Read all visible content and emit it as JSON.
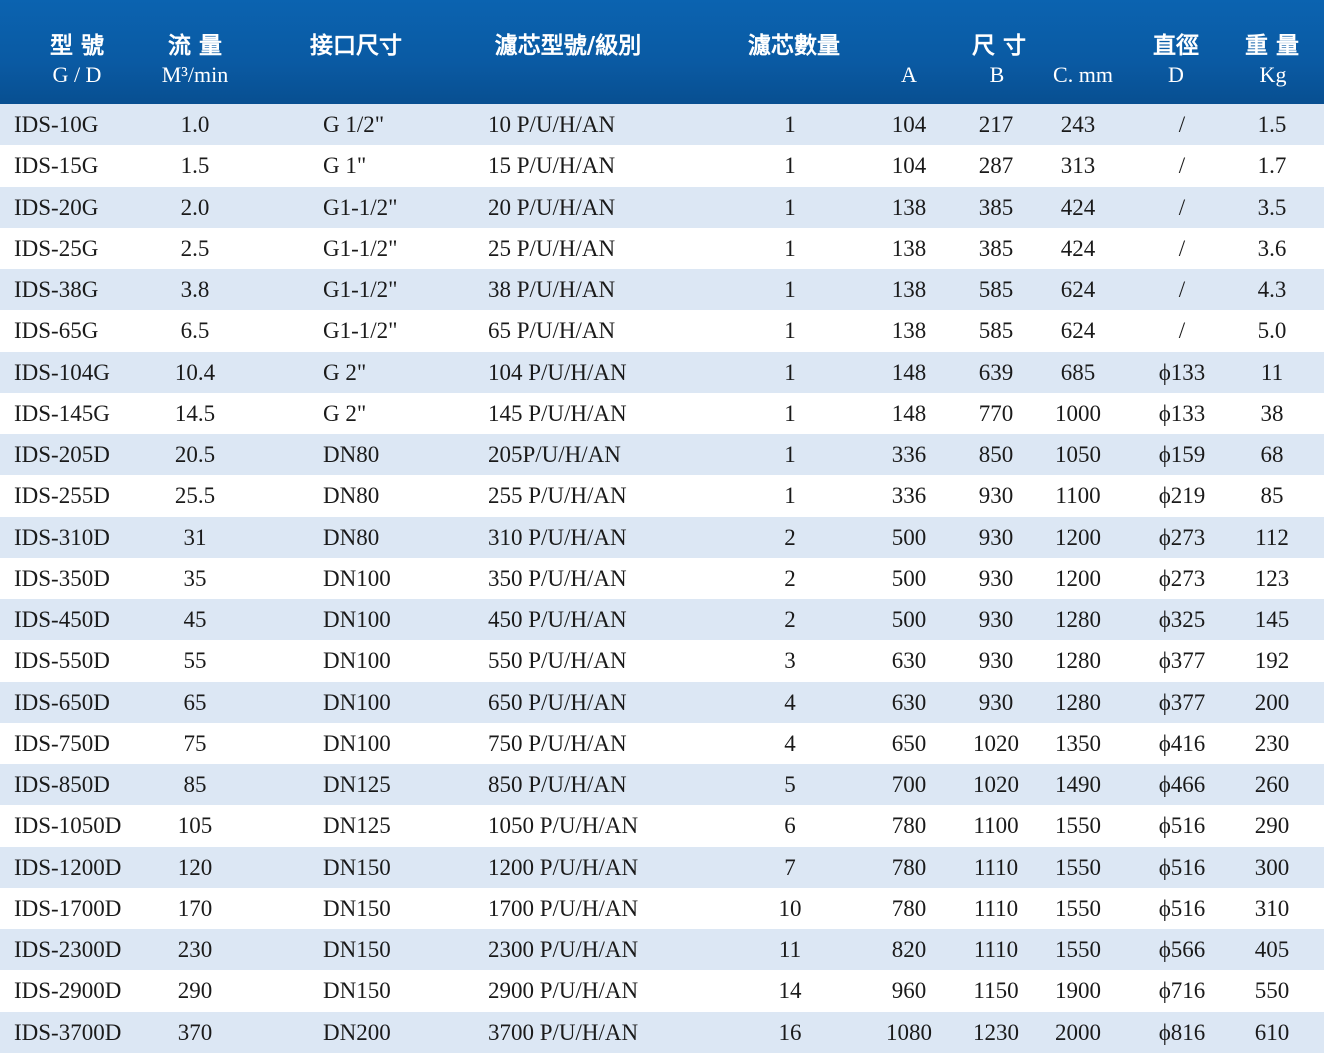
{
  "header": {
    "model_cn": "型 號",
    "model_en": "G / D",
    "flow_cn": "流 量",
    "flow_en": "M³/min",
    "port_cn": "接口尺寸",
    "filter_cn": "濾芯型號/級別",
    "count_cn": "濾芯數量",
    "size_cn": "尺 寸",
    "size_a": "A",
    "size_b": "B",
    "size_c": "C. mm",
    "dia_cn": "直徑",
    "dia_en": "D",
    "weight_cn": "重 量",
    "weight_en": "Kg"
  },
  "rows": [
    {
      "model": "IDS-10G",
      "flow": "1.0",
      "port": "G 1/2\"",
      "filter": "10 P/U/H/AN",
      "count": "1",
      "a": "104",
      "b": "217",
      "c": "243",
      "d": "/",
      "kg": "1.5"
    },
    {
      "model": "IDS-15G",
      "flow": "1.5",
      "port": "G 1\"",
      "filter": "15 P/U/H/AN",
      "count": "1",
      "a": "104",
      "b": "287",
      "c": "313",
      "d": "/",
      "kg": "1.7"
    },
    {
      "model": "IDS-20G",
      "flow": "2.0",
      "port": "G1-1/2\"",
      "filter": "20 P/U/H/AN",
      "count": "1",
      "a": "138",
      "b": "385",
      "c": "424",
      "d": "/",
      "kg": "3.5"
    },
    {
      "model": "IDS-25G",
      "flow": "2.5",
      "port": "G1-1/2\"",
      "filter": "25 P/U/H/AN",
      "count": "1",
      "a": "138",
      "b": "385",
      "c": "424",
      "d": "/",
      "kg": "3.6"
    },
    {
      "model": "IDS-38G",
      "flow": "3.8",
      "port": "G1-1/2\"",
      "filter": "38 P/U/H/AN",
      "count": "1",
      "a": "138",
      "b": "585",
      "c": "624",
      "d": "/",
      "kg": "4.3"
    },
    {
      "model": "IDS-65G",
      "flow": "6.5",
      "port": "G1-1/2\"",
      "filter": "65 P/U/H/AN",
      "count": "1",
      "a": "138",
      "b": "585",
      "c": "624",
      "d": "/",
      "kg": "5.0"
    },
    {
      "model": "IDS-104G",
      "flow": "10.4",
      "port": "G 2\"",
      "filter": "104 P/U/H/AN",
      "count": "1",
      "a": "148",
      "b": "639",
      "c": "685",
      "d": "ϕ133",
      "kg": "11"
    },
    {
      "model": "IDS-145G",
      "flow": "14.5",
      "port": "G 2\"",
      "filter": "145 P/U/H/AN",
      "count": "1",
      "a": "148",
      "b": "770",
      "c": "1000",
      "d": "ϕ133",
      "kg": "38"
    },
    {
      "model": "IDS-205D",
      "flow": "20.5",
      "port": "DN80",
      "filter": "205P/U/H/AN",
      "count": "1",
      "a": "336",
      "b": "850",
      "c": "1050",
      "d": "ϕ159",
      "kg": "68"
    },
    {
      "model": "IDS-255D",
      "flow": "25.5",
      "port": "DN80",
      "filter": "255 P/U/H/AN",
      "count": "1",
      "a": "336",
      "b": "930",
      "c": "1100",
      "d": "ϕ219",
      "kg": "85"
    },
    {
      "model": "IDS-310D",
      "flow": "31",
      "port": "DN80",
      "filter": "310 P/U/H/AN",
      "count": "2",
      "a": "500",
      "b": "930",
      "c": "1200",
      "d": "ϕ273",
      "kg": "112"
    },
    {
      "model": "IDS-350D",
      "flow": "35",
      "port": "DN100",
      "filter": "350 P/U/H/AN",
      "count": "2",
      "a": "500",
      "b": "930",
      "c": "1200",
      "d": "ϕ273",
      "kg": "123"
    },
    {
      "model": "IDS-450D",
      "flow": "45",
      "port": "DN100",
      "filter": "450 P/U/H/AN",
      "count": "2",
      "a": "500",
      "b": "930",
      "c": "1280",
      "d": "ϕ325",
      "kg": "145"
    },
    {
      "model": "IDS-550D",
      "flow": "55",
      "port": "DN100",
      "filter": "550 P/U/H/AN",
      "count": "3",
      "a": "630",
      "b": "930",
      "c": "1280",
      "d": "ϕ377",
      "kg": "192"
    },
    {
      "model": "IDS-650D",
      "flow": "65",
      "port": "DN100",
      "filter": "650 P/U/H/AN",
      "count": "4",
      "a": "630",
      "b": "930",
      "c": "1280",
      "d": "ϕ377",
      "kg": "200"
    },
    {
      "model": "IDS-750D",
      "flow": "75",
      "port": "DN100",
      "filter": "750 P/U/H/AN",
      "count": "4",
      "a": "650",
      "b": "1020",
      "c": "1350",
      "d": "ϕ416",
      "kg": "230"
    },
    {
      "model": "IDS-850D",
      "flow": "85",
      "port": "DN125",
      "filter": "850 P/U/H/AN",
      "count": "5",
      "a": "700",
      "b": "1020",
      "c": "1490",
      "d": "ϕ466",
      "kg": "260"
    },
    {
      "model": "IDS-1050D",
      "flow": "105",
      "port": "DN125",
      "filter": "1050 P/U/H/AN",
      "count": "6",
      "a": "780",
      "b": "1100",
      "c": "1550",
      "d": "ϕ516",
      "kg": "290"
    },
    {
      "model": "IDS-1200D",
      "flow": "120",
      "port": "DN150",
      "filter": "1200 P/U/H/AN",
      "count": "7",
      "a": "780",
      "b": "1110",
      "c": "1550",
      "d": "ϕ516",
      "kg": "300"
    },
    {
      "model": "IDS-1700D",
      "flow": "170",
      "port": "DN150",
      "filter": "1700 P/U/H/AN",
      "count": "10",
      "a": "780",
      "b": "1110",
      "c": "1550",
      "d": "ϕ516",
      "kg": "310"
    },
    {
      "model": "IDS-2300D",
      "flow": "230",
      "port": "DN150",
      "filter": "2300 P/U/H/AN",
      "count": "11",
      "a": "820",
      "b": "1110",
      "c": "1550",
      "d": "ϕ566",
      "kg": "405"
    },
    {
      "model": "IDS-2900D",
      "flow": "290",
      "port": "DN150",
      "filter": "2900 P/U/H/AN",
      "count": "14",
      "a": "960",
      "b": "1150",
      "c": "1900",
      "d": "ϕ716",
      "kg": "550"
    },
    {
      "model": "IDS-3700D",
      "flow": "370",
      "port": "DN200",
      "filter": "3700 P/U/H/AN",
      "count": "16",
      "a": "1080",
      "b": "1230",
      "c": "2000",
      "d": "ϕ816",
      "kg": "610"
    }
  ]
}
